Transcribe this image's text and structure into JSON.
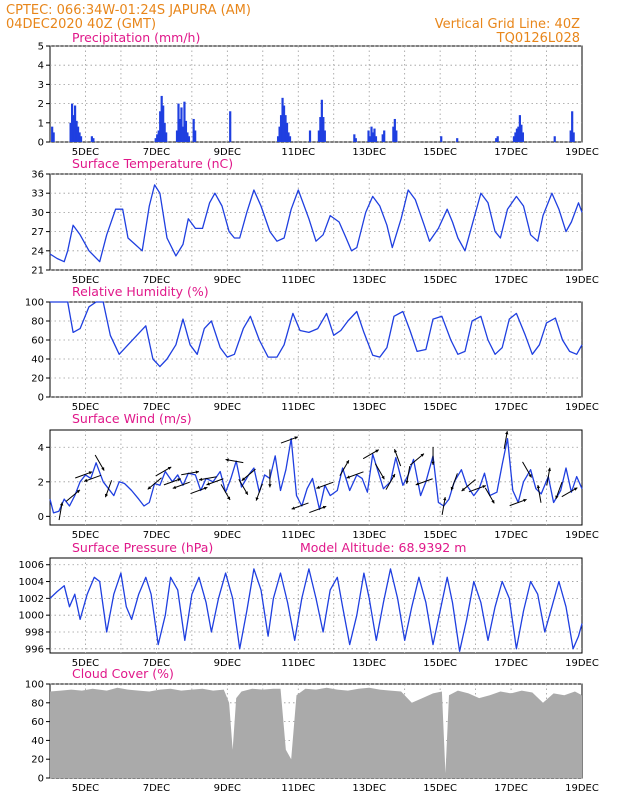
{
  "header": {
    "line1": "CPTEC:   066:34W-01:24S   JAPURA (AM)",
    "line2": "04DEC2020 40Z (GMT)",
    "grid_note": "Vertical Grid Line: 40Z",
    "code": "TQ0126L028"
  },
  "colors": {
    "header": "#e8861a",
    "panel_title": "#e0188a",
    "series": "#1f3fe0",
    "cloud": "#aaaaaa",
    "wind_arrow": "#000000"
  },
  "chart_data": [
    {
      "type": "bar",
      "title": "Precipitation (mm/h)",
      "ylim": [
        0,
        5
      ],
      "yticks": [
        0,
        1,
        2,
        3,
        4,
        5
      ],
      "x_range_days": [
        3.9,
        18.9
      ],
      "xtick_labels": [
        "5DEC",
        "7DEC",
        "9DEC",
        "11DEC",
        "13DEC",
        "15DEC",
        "17DEC",
        "19DEC"
      ],
      "grid": true,
      "events": [
        {
          "x": 3.93,
          "values": [
            0.8,
            0.5
          ]
        },
        {
          "x": 4.45,
          "values": [
            1.0,
            2.0,
            1.4,
            1.9,
            1.1,
            0.8,
            0.5,
            0.3
          ]
        },
        {
          "x": 5.05,
          "values": [
            0.3,
            0.2
          ]
        },
        {
          "x": 6.85,
          "values": [
            0.2,
            0.4,
            0.6,
            1.6,
            2.4,
            1.9,
            1.0,
            0.5
          ]
        },
        {
          "x": 7.45,
          "values": [
            0.6,
            2.0,
            1.2,
            1.8,
            0.8,
            2.1,
            1.1,
            0.5,
            0.3
          ]
        },
        {
          "x": 7.92,
          "values": [
            1.2,
            0.6
          ]
        },
        {
          "x": 8.95,
          "values": [
            1.6
          ]
        },
        {
          "x": 10.3,
          "values": [
            0.3,
            0.8,
            1.4,
            2.3,
            1.9,
            1.4,
            1.0,
            0.5,
            0.3
          ]
        },
        {
          "x": 11.2,
          "values": [
            0.6
          ]
        },
        {
          "x": 11.45,
          "values": [
            0.6,
            1.3,
            2.2,
            1.3,
            0.6
          ]
        },
        {
          "x": 12.45,
          "values": [
            0.4,
            0.2
          ]
        },
        {
          "x": 12.85,
          "values": [
            0.6,
            0.3,
            0.8,
            0.5,
            0.7,
            0.3
          ]
        },
        {
          "x": 13.25,
          "values": [
            0.4,
            0.6
          ]
        },
        {
          "x": 13.55,
          "values": [
            0.8,
            1.2,
            0.6
          ]
        },
        {
          "x": 14.9,
          "values": [
            0.3
          ]
        },
        {
          "x": 15.35,
          "values": [
            0.2
          ]
        },
        {
          "x": 16.45,
          "values": [
            0.2,
            0.3
          ]
        },
        {
          "x": 16.95,
          "values": [
            0.3,
            0.5,
            0.7,
            0.8,
            1.4,
            0.9,
            0.5
          ]
        },
        {
          "x": 18.1,
          "values": [
            0.3
          ]
        },
        {
          "x": 18.55,
          "values": [
            0.6,
            1.6,
            0.5
          ]
        }
      ]
    },
    {
      "type": "line",
      "title": "Surface Temperature (nC)",
      "ylim": [
        21,
        36
      ],
      "yticks": [
        21,
        24,
        27,
        30,
        33,
        36
      ],
      "x_range_days": [
        3.9,
        18.9
      ],
      "xtick_labels": [
        "5DEC",
        "7DEC",
        "9DEC",
        "11DEC",
        "13DEC",
        "15DEC",
        "17DEC",
        "19DEC"
      ],
      "grid": true,
      "x": [
        3.9,
        4.1,
        4.3,
        4.4,
        4.55,
        4.75,
        5.0,
        5.3,
        5.5,
        5.75,
        5.95,
        6.1,
        6.3,
        6.5,
        6.7,
        6.85,
        7.0,
        7.2,
        7.45,
        7.65,
        7.8,
        8.0,
        8.2,
        8.4,
        8.55,
        8.75,
        8.95,
        9.1,
        9.25,
        9.45,
        9.65,
        9.85,
        10.1,
        10.3,
        10.5,
        10.7,
        10.9,
        11.2,
        11.4,
        11.6,
        11.8,
        12.05,
        12.25,
        12.4,
        12.55,
        12.8,
        13.0,
        13.2,
        13.4,
        13.55,
        13.8,
        14.0,
        14.2,
        14.45,
        14.6,
        14.85,
        15.1,
        15.25,
        15.4,
        15.6,
        15.85,
        16.05,
        16.25,
        16.45,
        16.6,
        16.8,
        17.05,
        17.25,
        17.45,
        17.65,
        17.8,
        18.05,
        18.25,
        18.45,
        18.6,
        18.8,
        18.9
      ],
      "y": [
        23.5,
        22.8,
        22.3,
        24.0,
        28.0,
        26.5,
        24.0,
        22.3,
        26.5,
        30.5,
        30.5,
        26.0,
        25.0,
        24.0,
        31.0,
        34.3,
        33.0,
        26.0,
        23.2,
        25.0,
        29.0,
        27.5,
        27.5,
        31.5,
        33.0,
        31.0,
        27.0,
        26.0,
        26.0,
        30.0,
        33.5,
        31.0,
        27.0,
        25.5,
        26.0,
        30.5,
        33.5,
        29.0,
        25.5,
        26.5,
        29.5,
        28.5,
        26.0,
        24.0,
        24.5,
        30.0,
        32.5,
        31.0,
        28.0,
        24.5,
        29.0,
        33.5,
        32.0,
        28.0,
        25.5,
        27.5,
        30.5,
        28.5,
        26.0,
        24.0,
        29.0,
        33.0,
        31.5,
        27.0,
        26.0,
        30.5,
        32.5,
        31.0,
        26.5,
        25.5,
        29.5,
        33.0,
        30.5,
        27.0,
        28.5,
        31.5,
        30.0
      ]
    },
    {
      "type": "line",
      "title": "Relative Humidity (%)",
      "ylim": [
        0,
        100
      ],
      "yticks": [
        0,
        20,
        40,
        60,
        80,
        100
      ],
      "x_range_days": [
        3.9,
        18.9
      ],
      "xtick_labels": [
        "5DEC",
        "7DEC",
        "9DEC",
        "11DEC",
        "13DEC",
        "15DEC",
        "17DEC",
        "19DEC"
      ],
      "grid": true,
      "x": [
        3.9,
        4.2,
        4.4,
        4.55,
        4.75,
        5.0,
        5.2,
        5.4,
        5.6,
        5.85,
        6.1,
        6.35,
        6.6,
        6.8,
        7.0,
        7.2,
        7.45,
        7.65,
        7.85,
        8.05,
        8.25,
        8.45,
        8.7,
        8.9,
        9.1,
        9.35,
        9.55,
        9.8,
        10.05,
        10.3,
        10.5,
        10.75,
        10.95,
        11.2,
        11.45,
        11.7,
        11.9,
        12.1,
        12.3,
        12.55,
        12.75,
        13.0,
        13.2,
        13.4,
        13.6,
        13.85,
        14.05,
        14.25,
        14.5,
        14.7,
        14.95,
        15.2,
        15.4,
        15.6,
        15.8,
        16.05,
        16.25,
        16.45,
        16.65,
        16.85,
        17.05,
        17.3,
        17.5,
        17.7,
        17.9,
        18.15,
        18.35,
        18.55,
        18.75,
        18.9
      ],
      "y": [
        100,
        100,
        100,
        68,
        72,
        95,
        100,
        100,
        65,
        45,
        55,
        65,
        75,
        40,
        32,
        40,
        55,
        82,
        55,
        45,
        72,
        80,
        52,
        42,
        45,
        72,
        85,
        60,
        42,
        42,
        55,
        88,
        70,
        68,
        72,
        88,
        65,
        70,
        80,
        90,
        68,
        44,
        42,
        52,
        85,
        90,
        70,
        48,
        50,
        82,
        85,
        60,
        45,
        48,
        80,
        85,
        60,
        45,
        52,
        82,
        88,
        65,
        45,
        55,
        78,
        83,
        60,
        48,
        45,
        55
      ]
    },
    {
      "type": "line",
      "title": "Surface Wind (m/s)",
      "ylim": [
        -0.5,
        5
      ],
      "yticks": [
        0,
        2,
        4
      ],
      "x_range_days": [
        3.9,
        18.9
      ],
      "xtick_labels": [
        "5DEC",
        "7DEC",
        "9DEC",
        "11DEC",
        "13DEC",
        "15DEC",
        "17DEC",
        "19DEC"
      ],
      "grid": true,
      "x": [
        3.9,
        4.0,
        4.15,
        4.3,
        4.45,
        4.6,
        4.75,
        4.9,
        5.05,
        5.2,
        5.4,
        5.55,
        5.7,
        5.85,
        6.0,
        6.2,
        6.4,
        6.55,
        6.7,
        6.85,
        7.0,
        7.15,
        7.35,
        7.5,
        7.65,
        7.8,
        8.0,
        8.15,
        8.3,
        8.5,
        8.7,
        8.85,
        9.0,
        9.15,
        9.3,
        9.5,
        9.65,
        9.8,
        9.95,
        10.1,
        10.25,
        10.4,
        10.55,
        10.7,
        10.85,
        11.0,
        11.15,
        11.3,
        11.5,
        11.65,
        11.8,
        12.0,
        12.15,
        12.35,
        12.55,
        12.7,
        12.85,
        13.0,
        13.15,
        13.3,
        13.5,
        13.65,
        13.85,
        14.0,
        14.15,
        14.35,
        14.5,
        14.7,
        14.85,
        15.0,
        15.15,
        15.3,
        15.5,
        15.65,
        15.85,
        16.0,
        16.15,
        16.3,
        16.5,
        16.65,
        16.8,
        16.95,
        17.1,
        17.25,
        17.45,
        17.6,
        17.75,
        17.95,
        18.1,
        18.3,
        18.45,
        18.6,
        18.75,
        18.9
      ],
      "y": [
        1.0,
        0.2,
        0.3,
        1.0,
        0.6,
        1.2,
        2.0,
        2.4,
        2.2,
        3.1,
        2.0,
        1.6,
        1.2,
        2.0,
        1.9,
        1.5,
        1.0,
        0.6,
        0.8,
        1.9,
        1.8,
        2.6,
        2.0,
        2.4,
        1.8,
        2.5,
        2.4,
        1.5,
        2.2,
        2.0,
        2.6,
        1.4,
        2.2,
        3.2,
        1.7,
        2.4,
        2.8,
        1.4,
        2.4,
        2.2,
        3.5,
        1.5,
        2.7,
        4.5,
        1.2,
        0.6,
        1.6,
        2.2,
        0.4,
        1.8,
        1.2,
        1.5,
        2.8,
        1.5,
        2.4,
        2.2,
        1.4,
        3.6,
        2.6,
        1.6,
        2.0,
        3.4,
        1.8,
        2.4,
        3.3,
        1.2,
        2.0,
        3.5,
        0.8,
        0.6,
        1.0,
        2.0,
        2.7,
        1.8,
        1.2,
        1.6,
        2.5,
        1.2,
        1.4,
        3.0,
        4.5,
        1.5,
        0.8,
        2.0,
        2.7,
        1.6,
        1.3,
        2.3,
        0.8,
        1.5,
        2.8,
        1.4,
        2.3,
        1.6
      ],
      "arrows": [
        {
          "x": 4.2,
          "dir": 80
        },
        {
          "x": 4.55,
          "dir": 40
        },
        {
          "x": 4.85,
          "dir": 20
        },
        {
          "x": 5.1,
          "dir": 200
        },
        {
          "x": 5.3,
          "dir": 300
        },
        {
          "x": 5.55,
          "dir": 250
        },
        {
          "x": 6.85,
          "dir": 220
        },
        {
          "x": 7.1,
          "dir": 30
        },
        {
          "x": 7.35,
          "dir": 20
        },
        {
          "x": 7.6,
          "dir": 200
        },
        {
          "x": 7.85,
          "dir": 10
        },
        {
          "x": 8.1,
          "dir": 20
        },
        {
          "x": 8.35,
          "dir": 190
        },
        {
          "x": 8.55,
          "dir": 200
        },
        {
          "x": 8.85,
          "dir": 300
        },
        {
          "x": 9.1,
          "dir": 170
        },
        {
          "x": 9.35,
          "dir": 300
        },
        {
          "x": 9.5,
          "dir": 220
        },
        {
          "x": 9.8,
          "dir": 250
        },
        {
          "x": 10.1,
          "dir": 270
        },
        {
          "x": 10.65,
          "dir": 20
        },
        {
          "x": 10.95,
          "dir": 200
        },
        {
          "x": 11.45,
          "dir": 20
        },
        {
          "x": 11.65,
          "dir": 200
        },
        {
          "x": 12.2,
          "dir": 60
        },
        {
          "x": 12.5,
          "dir": 200
        },
        {
          "x": 12.95,
          "dir": 30
        },
        {
          "x": 13.2,
          "dir": 300
        },
        {
          "x": 13.5,
          "dir": 60
        },
        {
          "x": 13.7,
          "dir": 110
        },
        {
          "x": 14.0,
          "dir": 260
        },
        {
          "x": 14.25,
          "dir": 40
        },
        {
          "x": 14.45,
          "dir": 200
        },
        {
          "x": 14.7,
          "dir": 270
        },
        {
          "x": 15.0,
          "dir": 80
        },
        {
          "x": 15.3,
          "dir": 250
        },
        {
          "x": 15.7,
          "dir": 220
        },
        {
          "x": 15.95,
          "dir": 20
        },
        {
          "x": 16.3,
          "dir": 300
        },
        {
          "x": 16.75,
          "dir": 80
        },
        {
          "x": 17.1,
          "dir": 20
        },
        {
          "x": 17.35,
          "dir": 300
        },
        {
          "x": 17.7,
          "dir": 100
        },
        {
          "x": 17.95,
          "dir": 80
        },
        {
          "x": 18.25,
          "dir": 250
        },
        {
          "x": 18.55,
          "dir": 30
        }
      ]
    },
    {
      "type": "line",
      "title": "Surface Pressure (hPa)",
      "annotation": "Model Altitude: 68.9392 m",
      "ylim": [
        995.5,
        1006.8
      ],
      "yticks": [
        996,
        998,
        1000,
        1002,
        1004,
        1006
      ],
      "x_range_days": [
        3.9,
        18.9
      ],
      "xtick_labels": [
        "5DEC",
        "7DEC",
        "9DEC",
        "11DEC",
        "13DEC",
        "15DEC",
        "17DEC",
        "19DEC"
      ],
      "grid": true,
      "x": [
        3.9,
        4.1,
        4.3,
        4.45,
        4.6,
        4.75,
        4.95,
        5.15,
        5.3,
        5.5,
        5.7,
        5.9,
        6.05,
        6.2,
        6.4,
        6.6,
        6.75,
        6.95,
        7.15,
        7.3,
        7.5,
        7.7,
        7.9,
        8.1,
        8.3,
        8.45,
        8.65,
        8.85,
        9.05,
        9.25,
        9.45,
        9.65,
        9.85,
        10.05,
        10.2,
        10.4,
        10.6,
        10.8,
        11.0,
        11.2,
        11.4,
        11.6,
        11.8,
        12.0,
        12.15,
        12.35,
        12.55,
        12.75,
        12.9,
        13.1,
        13.3,
        13.5,
        13.7,
        13.9,
        14.1,
        14.3,
        14.5,
        14.7,
        14.9,
        15.1,
        15.25,
        15.45,
        15.65,
        15.85,
        16.05,
        16.25,
        16.45,
        16.65,
        16.85,
        17.05,
        17.25,
        17.45,
        17.65,
        17.85,
        18.05,
        18.25,
        18.45,
        18.65,
        18.8,
        18.9
      ],
      "y": [
        1002.0,
        1002.8,
        1003.5,
        1001.0,
        1002.5,
        999.5,
        1002.5,
        1004.5,
        1004.0,
        998.0,
        1002.5,
        1005.0,
        1001.0,
        999.5,
        1002.5,
        1004.5,
        1002.5,
        996.5,
        1000.0,
        1004.5,
        1003.0,
        997.0,
        1002.5,
        1004.5,
        1001.5,
        998.0,
        1002.0,
        1005.0,
        1002.0,
        996.0,
        1000.5,
        1005.5,
        1003.0,
        997.5,
        1002.0,
        1005.0,
        1001.5,
        997.0,
        1002.0,
        1005.5,
        1002.0,
        998.0,
        1003.0,
        1004.5,
        1001.0,
        996.5,
        1000.0,
        1005.0,
        1002.0,
        997.0,
        1001.5,
        1005.5,
        1002.0,
        997.0,
        1001.0,
        1004.5,
        1001.5,
        996.5,
        1000.5,
        1004.5,
        1001.5,
        995.7,
        999.5,
        1004.0,
        1001.5,
        997.0,
        1001.0,
        1004.0,
        1002.0,
        996.0,
        1000.5,
        1004.0,
        1002.5,
        998.0,
        1001.0,
        1004.0,
        1001.0,
        996.0,
        997.5,
        999.0
      ]
    },
    {
      "type": "area",
      "title": "Cloud Cover (%)",
      "ylim": [
        0,
        100
      ],
      "yticks": [
        0,
        20,
        40,
        60,
        80,
        100
      ],
      "x_range_days": [
        3.9,
        18.9
      ],
      "xtick_labels": [
        "5DEC",
        "7DEC",
        "9DEC",
        "11DEC",
        "13DEC",
        "15DEC",
        "17DEC",
        "19DEC"
      ],
      "grid": true,
      "x": [
        3.9,
        4.2,
        4.5,
        4.8,
        5.1,
        5.5,
        5.8,
        6.1,
        6.4,
        6.7,
        7.0,
        7.3,
        7.6,
        7.9,
        8.2,
        8.5,
        8.8,
        8.95,
        9.05,
        9.15,
        9.3,
        9.6,
        9.9,
        10.2,
        10.4,
        10.55,
        10.7,
        10.85,
        11.1,
        11.4,
        11.7,
        12.0,
        12.3,
        12.6,
        12.9,
        13.2,
        13.5,
        13.8,
        14.1,
        14.4,
        14.7,
        14.95,
        15.05,
        15.15,
        15.4,
        15.7,
        16.0,
        16.3,
        16.6,
        16.9,
        17.2,
        17.5,
        17.8,
        18.1,
        18.4,
        18.7,
        18.9
      ],
      "y": [
        92,
        93,
        94,
        93,
        95,
        93,
        96,
        94,
        93,
        92,
        94,
        95,
        93,
        94,
        95,
        93,
        94,
        80,
        30,
        85,
        92,
        95,
        94,
        95,
        95,
        30,
        20,
        88,
        95,
        94,
        96,
        94,
        93,
        95,
        96,
        94,
        93,
        92,
        80,
        85,
        90,
        92,
        5,
        88,
        93,
        90,
        85,
        88,
        92,
        90,
        93,
        91,
        80,
        90,
        88,
        92,
        88
      ]
    }
  ]
}
